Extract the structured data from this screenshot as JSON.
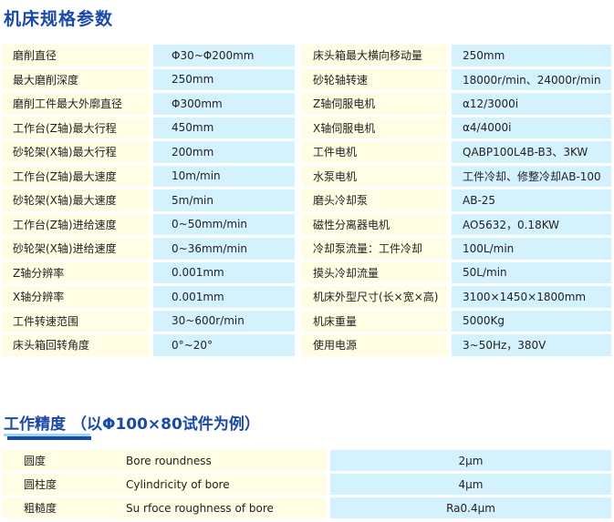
{
  "spec_title": "机床规格参数",
  "specs": [
    {
      "l1": "磨削直径",
      "v1": "Φ30~Φ200mm",
      "l2": "床头箱最大横向移动量",
      "v2": "250mm"
    },
    {
      "l1": "最大磨削深度",
      "v1": "250mm",
      "l2": "砂轮轴转速",
      "v2": "18000r/min、24000r/min"
    },
    {
      "l1": "磨削工件最大外廓直径",
      "v1": "Φ300mm",
      "l2": "Z轴伺服电机",
      "v2": "α12/3000i"
    },
    {
      "l1": "工作台(Z轴)最大行程",
      "v1": "450mm",
      "l2": "X轴伺服电机",
      "v2": "α4/4000i"
    },
    {
      "l1": "砂轮架(X轴)最大行程",
      "v1": "200mm",
      "l2": "工件电机",
      "v2": "QABP100L4B-B3、3KW"
    },
    {
      "l1": "工作台(Z轴)最大速度",
      "v1": "10m/min",
      "l2": "水泵电机",
      "v2": "工件冷却、修整冷却AB-100"
    },
    {
      "l1": "砂轮架(X轴)最大速度",
      "v1": "5m/min",
      "l2": "磨头冷却泵",
      "v2": "AB-25"
    },
    {
      "l1": "工作台(Z轴)进给速度",
      "v1": "0~50mm/min",
      "l2": "磁性分离器电机",
      "v2": "AO5632，0.18KW"
    },
    {
      "l1": "砂轮架(X轴)进给速度",
      "v1": "0~36mm/min",
      "l2": "冷却泵流量：工件冷却",
      "v2": "100L/min"
    },
    {
      "l1": "Z轴分辨率",
      "v1": "0.001mm",
      "l2": "摸头冷却流量",
      "v2": "50L/min"
    },
    {
      "l1": "X轴分辨率",
      "v1": "0.001mm",
      "l2": "机床外型尺寸(长×宽×高)",
      "v2": "3100×1450×1800mm"
    },
    {
      "l1": "工件转速范围",
      "v1": "30~600r/min",
      "l2": "机床重量",
      "v2": "5000Kg"
    },
    {
      "l1": "床头箱回转角度",
      "v1": "0°~20°",
      "l2": "使用电源",
      "v2": "3~50Hz，380V"
    }
  ],
  "accuracy_title": "工作精度",
  "accuracy_subtitle": "（以Φ100×80试件为例）",
  "accuracy": [
    {
      "cn": "圆度",
      "en": "Bore roundness",
      "v": "2μm"
    },
    {
      "cn": "圆柱度",
      "en": "Cylindricity of bore",
      "v": "4μm"
    },
    {
      "cn": "粗糙度",
      "en": "Su rfoce roughness of bore",
      "v": "Ra0.4μm"
    }
  ]
}
